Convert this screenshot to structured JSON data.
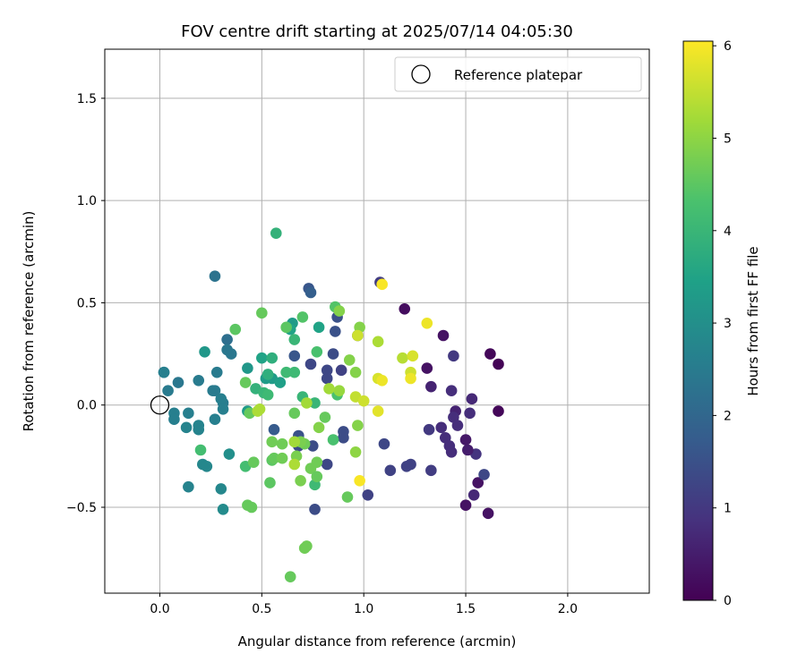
{
  "chart_data": {
    "type": "scatter",
    "title": "FOV centre drift starting at 2025/07/14 04:05:30",
    "xlabel": "Angular distance from reference (arcmin)",
    "ylabel": "Rotation from reference (arcmin)",
    "xlim": [
      -0.27,
      2.4
    ],
    "ylim": [
      -0.92,
      1.74
    ],
    "xticks": [
      0.0,
      0.5,
      1.0,
      1.5,
      2.0
    ],
    "xtick_labels": [
      "0.0",
      "0.5",
      "1.0",
      "1.5",
      "2.0"
    ],
    "yticks": [
      -0.5,
      0.0,
      0.5,
      1.0,
      1.5
    ],
    "ytick_labels": [
      "−0.5",
      "0.0",
      "0.5",
      "1.0",
      "1.5"
    ],
    "grid": true,
    "legend": {
      "position": "top-right",
      "label": "Reference platepar"
    },
    "reference_point": {
      "x": 0.0,
      "y": 0.0
    },
    "colorbar": {
      "label": "Hours from first FF file",
      "range": [
        0,
        6.05
      ],
      "ticks": [
        0,
        1,
        2,
        3,
        4,
        5,
        6
      ],
      "tick_labels": [
        "0",
        "1",
        "2",
        "3",
        "4",
        "5",
        "6"
      ],
      "colormap": "viridis"
    },
    "points": [
      {
        "x": 1.62,
        "y": 0.25,
        "c": 0.1
      },
      {
        "x": 1.66,
        "y": 0.2,
        "c": 0.05
      },
      {
        "x": 1.66,
        "y": -0.03,
        "c": 0.1
      },
      {
        "x": 1.61,
        "y": -0.53,
        "c": 0.3
      },
      {
        "x": 1.5,
        "y": -0.49,
        "c": 0.3
      },
      {
        "x": 1.54,
        "y": -0.44,
        "c": 0.7
      },
      {
        "x": 1.56,
        "y": -0.38,
        "c": 0.3
      },
      {
        "x": 1.55,
        "y": -0.24,
        "c": 0.9
      },
      {
        "x": 1.51,
        "y": -0.22,
        "c": 0.5
      },
      {
        "x": 1.5,
        "y": -0.17,
        "c": 0.4
      },
      {
        "x": 1.53,
        "y": 0.03,
        "c": 0.7
      },
      {
        "x": 1.52,
        "y": -0.04,
        "c": 0.8
      },
      {
        "x": 1.45,
        "y": -0.03,
        "c": 0.6
      },
      {
        "x": 1.44,
        "y": -0.06,
        "c": 0.8
      },
      {
        "x": 1.46,
        "y": -0.1,
        "c": 0.8
      },
      {
        "x": 1.43,
        "y": 0.07,
        "c": 0.8
      },
      {
        "x": 1.44,
        "y": 0.24,
        "c": 1.0
      },
      {
        "x": 1.39,
        "y": 0.34,
        "c": 0.3
      },
      {
        "x": 1.31,
        "y": 0.18,
        "c": 0.3
      },
      {
        "x": 1.33,
        "y": 0.09,
        "c": 0.6
      },
      {
        "x": 1.38,
        "y": -0.11,
        "c": 0.8
      },
      {
        "x": 1.4,
        "y": -0.16,
        "c": 0.8
      },
      {
        "x": 1.42,
        "y": -0.2,
        "c": 0.8
      },
      {
        "x": 1.43,
        "y": -0.23,
        "c": 0.8
      },
      {
        "x": 1.32,
        "y": -0.12,
        "c": 1.0
      },
      {
        "x": 1.33,
        "y": -0.32,
        "c": 1.1
      },
      {
        "x": 1.23,
        "y": -0.29,
        "c": 1.2
      },
      {
        "x": 1.21,
        "y": -0.3,
        "c": 1.2
      },
      {
        "x": 1.13,
        "y": -0.32,
        "c": 1.2
      },
      {
        "x": 1.02,
        "y": -0.44,
        "c": 1.2
      },
      {
        "x": 1.1,
        "y": -0.19,
        "c": 1.3
      },
      {
        "x": 1.59,
        "y": -0.34,
        "c": 1.3
      },
      {
        "x": 1.2,
        "y": 0.47,
        "c": 0.2
      },
      {
        "x": 1.08,
        "y": 0.6,
        "c": 1.1
      },
      {
        "x": 0.97,
        "y": 0.34,
        "c": 1.4
      },
      {
        "x": 0.89,
        "y": 0.17,
        "c": 1.2
      },
      {
        "x": 0.85,
        "y": 0.25,
        "c": 1.4
      },
      {
        "x": 0.86,
        "y": 0.36,
        "c": 1.5
      },
      {
        "x": 0.87,
        "y": 0.43,
        "c": 1.5
      },
      {
        "x": 0.82,
        "y": 0.17,
        "c": 1.3
      },
      {
        "x": 0.82,
        "y": 0.13,
        "c": 1.3
      },
      {
        "x": 0.74,
        "y": 0.2,
        "c": 1.3
      },
      {
        "x": 0.73,
        "y": 0.57,
        "c": 1.6
      },
      {
        "x": 0.74,
        "y": 0.55,
        "c": 1.8
      },
      {
        "x": 0.9,
        "y": -0.13,
        "c": 1.4
      },
      {
        "x": 0.9,
        "y": -0.16,
        "c": 1.4
      },
      {
        "x": 0.82,
        "y": -0.29,
        "c": 1.3
      },
      {
        "x": 0.76,
        "y": -0.51,
        "c": 1.4
      },
      {
        "x": 0.75,
        "y": -0.2,
        "c": 1.4
      },
      {
        "x": 0.68,
        "y": -0.2,
        "c": 1.4
      },
      {
        "x": 0.68,
        "y": -0.15,
        "c": 1.5
      },
      {
        "x": 0.66,
        "y": 0.24,
        "c": 1.6
      },
      {
        "x": 0.56,
        "y": -0.12,
        "c": 1.7
      },
      {
        "x": 0.27,
        "y": 0.63,
        "c": 2.3
      },
      {
        "x": 0.33,
        "y": 0.32,
        "c": 2.2
      },
      {
        "x": 0.33,
        "y": 0.27,
        "c": 2.4
      },
      {
        "x": 0.35,
        "y": 0.25,
        "c": 2.4
      },
      {
        "x": 0.28,
        "y": 0.16,
        "c": 2.5
      },
      {
        "x": 0.26,
        "y": 0.07,
        "c": 2.5
      },
      {
        "x": 0.27,
        "y": 0.07,
        "c": 2.5
      },
      {
        "x": 0.31,
        "y": 0.01,
        "c": 2.5
      },
      {
        "x": 0.3,
        "y": 0.03,
        "c": 2.6
      },
      {
        "x": 0.31,
        "y": -0.02,
        "c": 2.6
      },
      {
        "x": 0.27,
        "y": -0.07,
        "c": 2.6
      },
      {
        "x": 0.19,
        "y": 0.12,
        "c": 2.5
      },
      {
        "x": 0.09,
        "y": 0.11,
        "c": 2.4
      },
      {
        "x": 0.04,
        "y": 0.07,
        "c": 2.5
      },
      {
        "x": 0.02,
        "y": 0.16,
        "c": 2.6
      },
      {
        "x": 0.02,
        "y": 0.16,
        "c": 2.6
      },
      {
        "x": 0.07,
        "y": -0.04,
        "c": 2.6
      },
      {
        "x": 0.07,
        "y": -0.07,
        "c": 2.6
      },
      {
        "x": 0.14,
        "y": -0.04,
        "c": 2.6
      },
      {
        "x": 0.19,
        "y": -0.1,
        "c": 2.7
      },
      {
        "x": 0.19,
        "y": -0.12,
        "c": 2.7
      },
      {
        "x": 0.13,
        "y": -0.11,
        "c": 2.7
      },
      {
        "x": 0.21,
        "y": -0.29,
        "c": 2.8
      },
      {
        "x": 0.23,
        "y": -0.3,
        "c": 2.8
      },
      {
        "x": 0.14,
        "y": -0.4,
        "c": 2.7
      },
      {
        "x": 0.3,
        "y": -0.41,
        "c": 2.8
      },
      {
        "x": 0.31,
        "y": -0.51,
        "c": 2.9
      },
      {
        "x": 0.34,
        "y": -0.24,
        "c": 3.0
      },
      {
        "x": 0.22,
        "y": 0.26,
        "c": 3.2
      },
      {
        "x": 0.43,
        "y": 0.18,
        "c": 3.2
      },
      {
        "x": 0.43,
        "y": -0.03,
        "c": 3.3
      },
      {
        "x": 0.52,
        "y": 0.13,
        "c": 3.3
      },
      {
        "x": 0.55,
        "y": 0.13,
        "c": 3.3
      },
      {
        "x": 0.59,
        "y": 0.11,
        "c": 3.4
      },
      {
        "x": 0.65,
        "y": 0.4,
        "c": 3.3
      },
      {
        "x": 0.5,
        "y": 0.23,
        "c": 3.5
      },
      {
        "x": 0.57,
        "y": 0.84,
        "c": 3.9
      },
      {
        "x": 0.64,
        "y": 0.37,
        "c": 3.5
      },
      {
        "x": 0.78,
        "y": 0.38,
        "c": 3.5
      },
      {
        "x": 0.53,
        "y": 0.15,
        "c": 3.8
      },
      {
        "x": 0.55,
        "y": 0.23,
        "c": 3.8
      },
      {
        "x": 0.47,
        "y": 0.08,
        "c": 3.9
      },
      {
        "x": 0.51,
        "y": 0.06,
        "c": 4.0
      },
      {
        "x": 0.53,
        "y": 0.05,
        "c": 4.1
      },
      {
        "x": 0.7,
        "y": 0.04,
        "c": 4.0
      },
      {
        "x": 0.76,
        "y": 0.01,
        "c": 4.0
      },
      {
        "x": 0.66,
        "y": 0.32,
        "c": 4.0
      },
      {
        "x": 0.66,
        "y": 0.16,
        "c": 4.1
      },
      {
        "x": 0.62,
        "y": 0.16,
        "c": 4.1
      },
      {
        "x": 0.76,
        "y": -0.39,
        "c": 4.1
      },
      {
        "x": 0.2,
        "y": -0.22,
        "c": 4.2
      },
      {
        "x": 0.42,
        "y": -0.3,
        "c": 4.2
      },
      {
        "x": 0.85,
        "y": -0.17,
        "c": 4.3
      },
      {
        "x": 0.87,
        "y": 0.05,
        "c": 4.3
      },
      {
        "x": 0.77,
        "y": 0.26,
        "c": 4.3
      },
      {
        "x": 0.86,
        "y": 0.48,
        "c": 4.4
      },
      {
        "x": 0.7,
        "y": 0.43,
        "c": 4.4
      },
      {
        "x": 0.62,
        "y": 0.38,
        "c": 4.5
      },
      {
        "x": 0.5,
        "y": 0.45,
        "c": 4.6
      },
      {
        "x": 0.37,
        "y": 0.37,
        "c": 4.5
      },
      {
        "x": 0.42,
        "y": 0.11,
        "c": 4.6
      },
      {
        "x": 0.44,
        "y": -0.04,
        "c": 4.6
      },
      {
        "x": 0.43,
        "y": -0.49,
        "c": 4.6
      },
      {
        "x": 0.45,
        "y": -0.5,
        "c": 4.6
      },
      {
        "x": 0.46,
        "y": -0.28,
        "c": 4.6
      },
      {
        "x": 0.54,
        "y": -0.38,
        "c": 4.5
      },
      {
        "x": 0.55,
        "y": -0.27,
        "c": 4.5
      },
      {
        "x": 0.56,
        "y": -0.26,
        "c": 4.6
      },
      {
        "x": 0.6,
        "y": -0.26,
        "c": 4.7
      },
      {
        "x": 0.55,
        "y": -0.18,
        "c": 4.7
      },
      {
        "x": 0.6,
        "y": -0.19,
        "c": 4.7
      },
      {
        "x": 0.66,
        "y": -0.04,
        "c": 4.6
      },
      {
        "x": 0.71,
        "y": -0.19,
        "c": 4.7
      },
      {
        "x": 0.74,
        "y": -0.31,
        "c": 4.7
      },
      {
        "x": 0.77,
        "y": -0.35,
        "c": 4.6
      },
      {
        "x": 0.77,
        "y": -0.28,
        "c": 4.7
      },
      {
        "x": 0.81,
        "y": -0.06,
        "c": 4.6
      },
      {
        "x": 0.92,
        "y": -0.45,
        "c": 4.6
      },
      {
        "x": 0.64,
        "y": -0.84,
        "c": 4.6
      },
      {
        "x": 0.71,
        "y": -0.7,
        "c": 4.7
      },
      {
        "x": 0.72,
        "y": -0.69,
        "c": 4.7
      },
      {
        "x": 0.69,
        "y": -0.37,
        "c": 4.8
      },
      {
        "x": 0.67,
        "y": -0.25,
        "c": 4.8
      },
      {
        "x": 0.69,
        "y": -0.18,
        "c": 4.8
      },
      {
        "x": 0.78,
        "y": -0.11,
        "c": 4.9
      },
      {
        "x": 0.93,
        "y": 0.22,
        "c": 4.9
      },
      {
        "x": 0.96,
        "y": 0.16,
        "c": 4.9
      },
      {
        "x": 0.98,
        "y": 0.38,
        "c": 4.9
      },
      {
        "x": 0.88,
        "y": 0.46,
        "c": 4.9
      },
      {
        "x": 0.96,
        "y": -0.23,
        "c": 5.0
      },
      {
        "x": 0.97,
        "y": -0.1,
        "c": 4.9
      },
      {
        "x": 0.88,
        "y": 0.07,
        "c": 5.1
      },
      {
        "x": 0.83,
        "y": 0.08,
        "c": 5.2
      },
      {
        "x": 0.72,
        "y": 0.01,
        "c": 5.2
      },
      {
        "x": 0.66,
        "y": -0.18,
        "c": 5.2
      },
      {
        "x": 0.66,
        "y": -0.29,
        "c": 5.3
      },
      {
        "x": 0.49,
        "y": -0.02,
        "c": 5.3
      },
      {
        "x": 0.48,
        "y": -0.03,
        "c": 5.3
      },
      {
        "x": 1.07,
        "y": 0.31,
        "c": 5.3
      },
      {
        "x": 1.19,
        "y": 0.23,
        "c": 5.4
      },
      {
        "x": 0.96,
        "y": 0.04,
        "c": 5.5
      },
      {
        "x": 0.97,
        "y": 0.34,
        "c": 5.6
      },
      {
        "x": 1.0,
        "y": 0.02,
        "c": 5.6
      },
      {
        "x": 1.07,
        "y": 0.13,
        "c": 5.7
      },
      {
        "x": 1.09,
        "y": 0.12,
        "c": 5.9
      },
      {
        "x": 1.23,
        "y": 0.16,
        "c": 5.6
      },
      {
        "x": 1.24,
        "y": 0.24,
        "c": 5.7
      },
      {
        "x": 1.23,
        "y": 0.13,
        "c": 5.9
      },
      {
        "x": 1.31,
        "y": 0.4,
        "c": 5.9
      },
      {
        "x": 1.07,
        "y": -0.03,
        "c": 5.8
      },
      {
        "x": 0.98,
        "y": -0.37,
        "c": 6.0
      },
      {
        "x": 1.09,
        "y": 0.59,
        "c": 6.0
      }
    ]
  }
}
